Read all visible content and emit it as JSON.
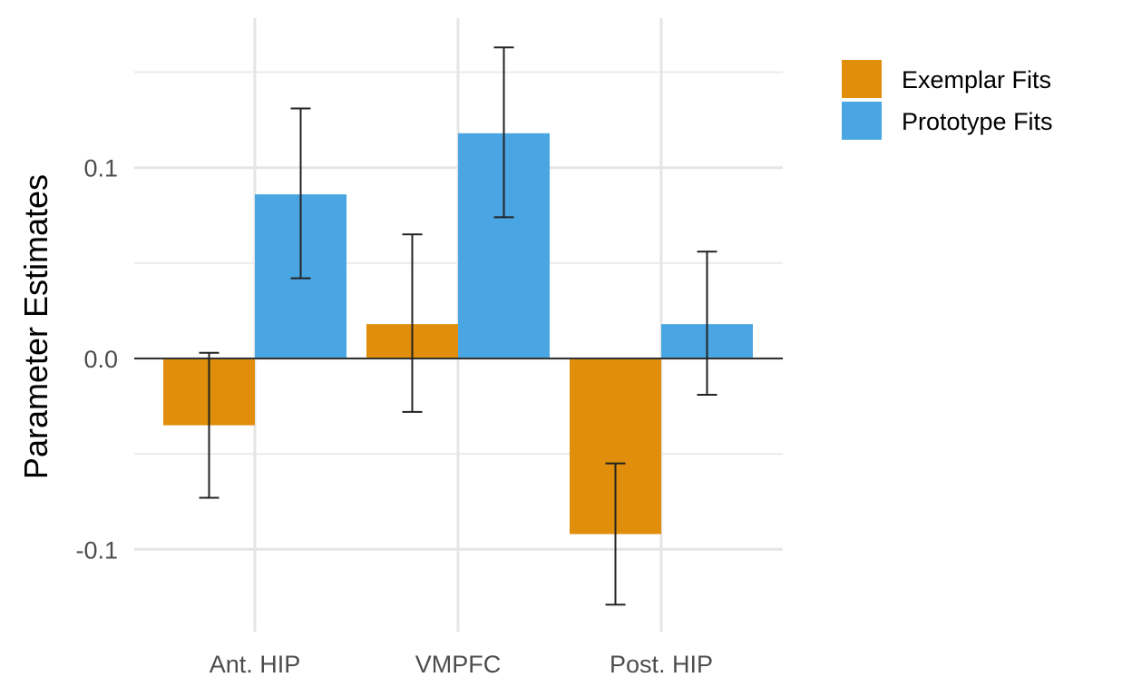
{
  "chart_data": {
    "type": "bar",
    "title": "",
    "xlabel": "",
    "ylabel": "Parameter Estimates",
    "categories": [
      "Ant. HIP",
      "VMPFC",
      "Post. HIP"
    ],
    "series": [
      {
        "name": "Exemplar Fits",
        "color": "#E08E0B",
        "values": [
          -0.035,
          0.018,
          -0.092
        ],
        "error_low": [
          -0.073,
          -0.028,
          -0.129
        ],
        "error_high": [
          0.003,
          0.065,
          -0.055
        ]
      },
      {
        "name": "Prototype Fits",
        "color": "#4AA6E2",
        "values": [
          0.086,
          0.118,
          0.018
        ],
        "error_low": [
          0.042,
          0.074,
          -0.019
        ],
        "error_high": [
          0.131,
          0.163,
          0.056
        ]
      }
    ],
    "yticks": [
      "-0.1",
      "0.0",
      "0.1"
    ],
    "ytick_values": [
      -0.1,
      0.0,
      0.1
    ],
    "ylim": [
      -0.143,
      0.17
    ],
    "grid": true,
    "legend_position": "top-right"
  }
}
